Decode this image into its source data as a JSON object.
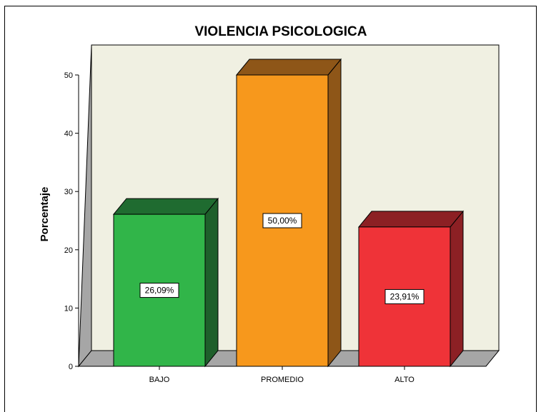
{
  "chart_data": {
    "type": "bar",
    "title": "VIOLENCIA PSICOLOGICA",
    "xlabel": "",
    "ylabel": "Porcentaje",
    "categories": [
      "BAJO",
      "PROMEDIO",
      "ALTO"
    ],
    "values": [
      26.09,
      50.0,
      23.91
    ],
    "data_labels": [
      "26,09%",
      "50,00%",
      "23,91%"
    ],
    "yticks": [
      0,
      10,
      20,
      30,
      40,
      50
    ],
    "ylim": [
      0,
      50
    ],
    "colors": {
      "BAJO": {
        "front": "#31b549",
        "top": "#1f6b30",
        "side": "#1e5f2b"
      },
      "PROMEDIO": {
        "front": "#f7981c",
        "top": "#8e5618",
        "side": "#8e5618"
      },
      "ALTO": {
        "front": "#ef3338",
        "top": "#8c2024",
        "side": "#8c2024"
      }
    },
    "grid": false,
    "legend": "none"
  }
}
